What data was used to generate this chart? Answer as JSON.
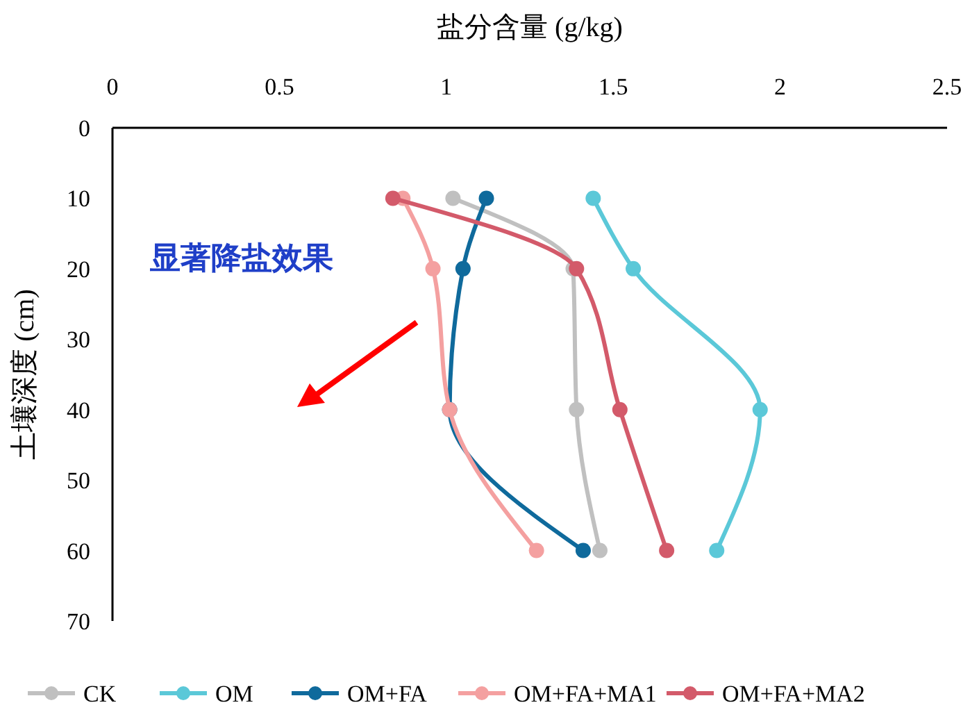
{
  "chart_data": {
    "type": "line",
    "xlabel": "盐分含量 (g/kg)",
    "ylabel": "土壤深度 (cm)",
    "xlim": [
      0,
      2.5
    ],
    "xticks": [
      0,
      0.5,
      1,
      1.5,
      2,
      2.5
    ],
    "ylim": [
      70,
      0
    ],
    "yticks": [
      0,
      10,
      20,
      30,
      40,
      50,
      60,
      70
    ],
    "marker": "circle",
    "legend": "bottom",
    "annotations": [
      "显著降盐效果"
    ],
    "series": [
      {
        "name": "CK",
        "color": "#c0c0c0",
        "x": [
          1.02,
          1.38,
          1.39,
          1.46
        ],
        "values": [
          10,
          20,
          40,
          60
        ]
      },
      {
        "name": "OM",
        "color": "#5bc8d8",
        "x": [
          1.44,
          1.56,
          1.94,
          1.81
        ],
        "values": [
          10,
          20,
          40,
          60
        ]
      },
      {
        "name": "OM+FA",
        "color": "#0f6a9c",
        "x": [
          1.12,
          1.05,
          1.01,
          1.41
        ],
        "values": [
          10,
          20,
          40,
          60
        ]
      },
      {
        "name": "OM+FA+MA1",
        "color": "#f4a0a0",
        "x": [
          0.87,
          0.96,
          1.01,
          1.27
        ],
        "values": [
          10,
          20,
          40,
          60
        ]
      },
      {
        "name": "OM+FA+MA2",
        "color": "#d35a6a",
        "x": [
          0.84,
          1.39,
          1.52,
          1.66
        ],
        "values": [
          10,
          20,
          40,
          60
        ]
      }
    ]
  }
}
